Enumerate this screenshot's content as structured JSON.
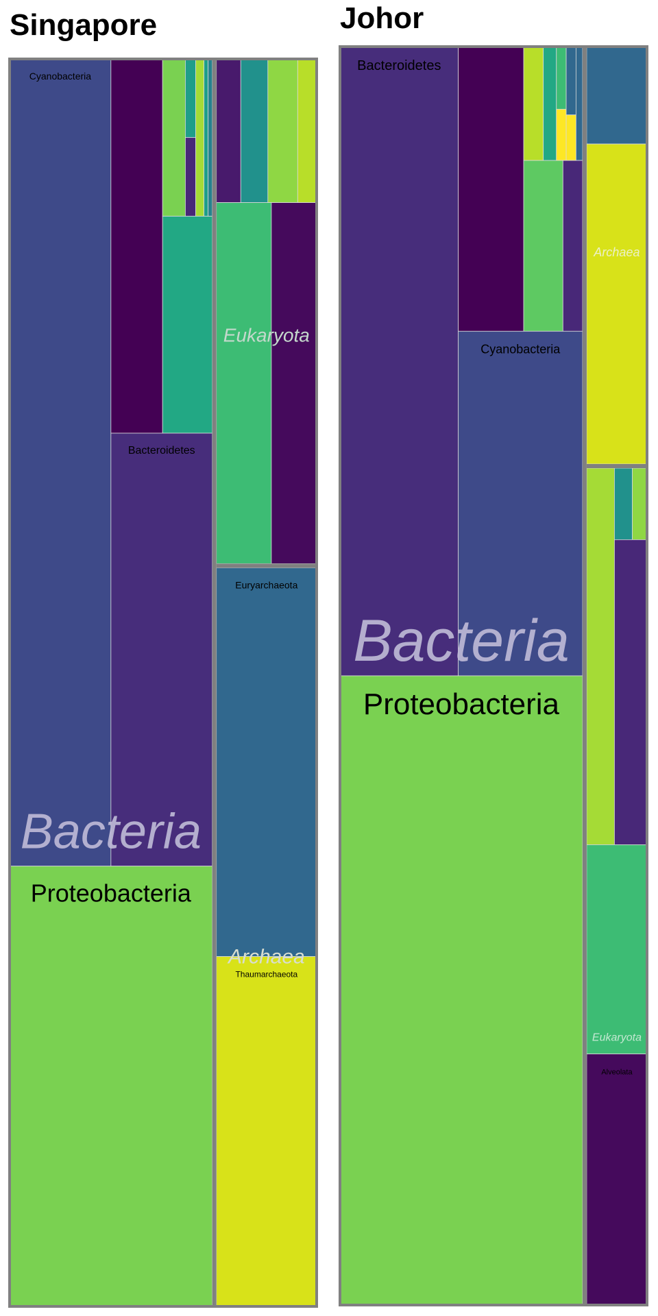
{
  "chart_data": [
    {
      "type": "treemap",
      "title": "Singapore",
      "groups": [
        {
          "name": "Bacteria",
          "value": 68,
          "children": [
            {
              "name": "Cyanobacteria",
              "value": 22,
              "color": "#3e4a89",
              "label": true
            },
            {
              "name": "",
              "value": 5.2,
              "color": "#440154",
              "label": false
            },
            {
              "name": "",
              "value": 2.9,
              "color": "#22a884",
              "label": false
            },
            {
              "name": "",
              "value": 1.1,
              "color": "#7ad151",
              "label": false
            },
            {
              "name": "",
              "value": 0.5,
              "color": "#482878",
              "label": false
            },
            {
              "name": "",
              "value": 0.4,
              "color": "#a5db36",
              "label": false
            },
            {
              "name": "",
              "value": 0.2,
              "color": "#1f9e89",
              "label": false
            },
            {
              "name": "",
              "value": 0.2,
              "color": "#26828e",
              "label": false
            },
            {
              "name": "Bacteroidetes",
              "value": 11.8,
              "color": "#472d7b",
              "label": true
            },
            {
              "name": "Proteobacteria",
              "value": 24,
              "color": "#7ad151",
              "label": true
            }
          ]
        },
        {
          "name": "Eukaryota",
          "value": 13,
          "children": [
            {
              "name": "",
              "value": 0.9,
              "color": "#481a6c",
              "label": false
            },
            {
              "name": "",
              "value": 1.0,
              "color": "#21918c",
              "label": false
            },
            {
              "name": "",
              "value": 1.1,
              "color": "#8fd744",
              "label": false
            },
            {
              "name": "",
              "value": 0.7,
              "color": "#b8de29",
              "label": false
            },
            {
              "name": "",
              "value": 5.1,
              "color": "#3dbc74",
              "label": false
            },
            {
              "name": "",
              "value": 4.2,
              "color": "#450a5c",
              "label": false
            }
          ]
        },
        {
          "name": "Archaea",
          "value": 19,
          "children": [
            {
              "name": "Euryarchaeota",
              "value": 10.0,
              "color": "#31688e",
              "label": true
            },
            {
              "name": "Thaumarchaeota",
              "value": 9.0,
              "color": "#d8e219",
              "label": true
            }
          ]
        }
      ]
    },
    {
      "type": "treemap",
      "title": "Johor",
      "groups": [
        {
          "name": "Bacteria",
          "value": 82,
          "children": [
            {
              "name": "Bacteroidetes",
              "value": 20,
              "color": "#472d7b",
              "label": true
            },
            {
              "name": "",
              "value": 5.0,
              "color": "#440154",
              "label": false
            },
            {
              "name": "",
              "value": 0.6,
              "color": "#b8de29",
              "label": false
            },
            {
              "name": "",
              "value": 0.4,
              "color": "#22a884",
              "label": false
            },
            {
              "name": "",
              "value": 0.3,
              "color": "#3dbc74",
              "label": false
            },
            {
              "name": "",
              "value": 0.3,
              "color": "#fde725",
              "label": false
            },
            {
              "name": "",
              "value": 0.2,
              "color": "#31688e",
              "label": false
            },
            {
              "name": "",
              "value": 1.8,
              "color": "#5ec962",
              "label": false
            },
            {
              "name": "",
              "value": 0.9,
              "color": "#482878",
              "label": false
            },
            {
              "name": "Cyanobacteria",
              "value": 11.5,
              "color": "#3e4a89",
              "label": true
            },
            {
              "name": "Proteobacteria",
              "value": 41,
              "color": "#7ad151",
              "label": true
            }
          ]
        },
        {
          "name": "Archaea",
          "value": 6,
          "children": [
            {
              "name": "",
              "value": 1.4,
              "color": "#31688e",
              "label": false
            },
            {
              "name": "",
              "value": 4.6,
              "color": "#d8e219",
              "label": false
            }
          ]
        },
        {
          "name": "Eukaryota",
          "value": 12,
          "children": [
            {
              "name": "",
              "value": 2.6,
              "color": "#a5db36",
              "label": false
            },
            {
              "name": "",
              "value": 0.3,
              "color": "#21918c",
              "label": false
            },
            {
              "name": "",
              "value": 0.2,
              "color": "#8fd744",
              "label": false
            },
            {
              "name": "",
              "value": 2.3,
              "color": "#482878",
              "label": false
            },
            {
              "name": "",
              "value": 3.0,
              "color": "#3dbc74",
              "label": false
            },
            {
              "name": "Alveolata",
              "value": 3.6,
              "color": "#450a5c",
              "label": true
            }
          ]
        }
      ]
    }
  ]
}
